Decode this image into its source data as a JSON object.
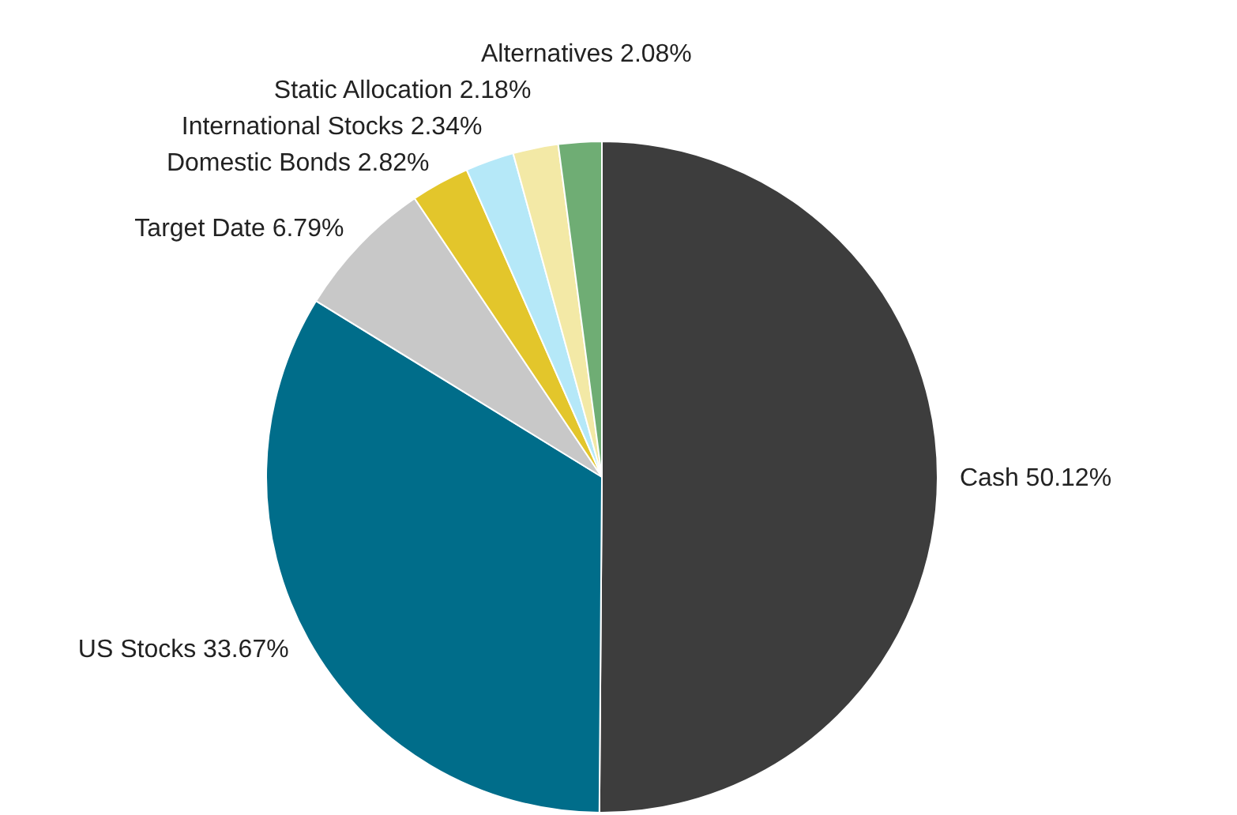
{
  "chart_data": {
    "type": "pie",
    "categories": [
      "Cash",
      "US Stocks",
      "Target Date",
      "Domestic Bonds",
      "International Stocks",
      "Static Allocation",
      "Alternatives"
    ],
    "values": [
      50.12,
      33.67,
      6.79,
      2.82,
      2.34,
      2.18,
      2.08
    ],
    "value_labels": [
      "50.12%",
      "33.67%",
      "6.79%",
      "2.82%",
      "2.34%",
      "2.18%",
      "2.08%"
    ],
    "colors": [
      "#3d3d3d",
      "#006d8a",
      "#c8c8c8",
      "#e3c62b",
      "#b5e8f8",
      "#f3e9a6",
      "#6fad74"
    ],
    "legend": false
  }
}
